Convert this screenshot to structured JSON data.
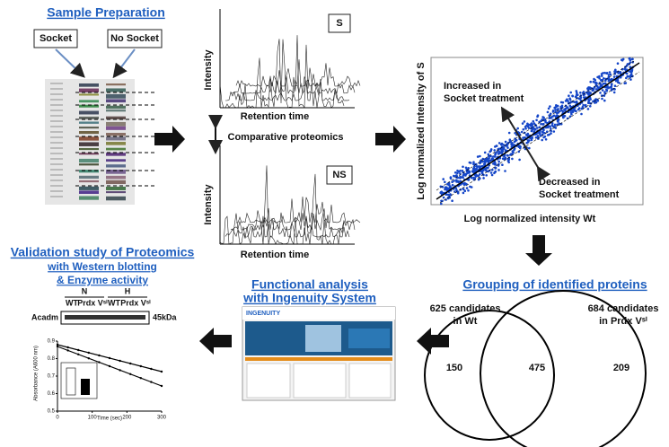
{
  "sample_preparation": {
    "title": "Sample Preparation",
    "socket": "Socket",
    "no_socket": "No Socket"
  },
  "chromatograms": {
    "top": {
      "label": "S",
      "y_label": "Intensity",
      "x_label": "Retention time"
    },
    "middle": "Comparative proteomics",
    "bottom": {
      "label": "NS",
      "y_label": "Intensity",
      "x_label": "Retention time"
    }
  },
  "scatter": {
    "y_label": "Log normalized Intensity of S",
    "x_label": "Log normalized intensity Wt",
    "increased": [
      "Increased in",
      "Socket treatment"
    ],
    "decreased": [
      "Decreased in",
      "Socket treatment"
    ]
  },
  "grouping": {
    "title": "Grouping of identified proteins",
    "left_label": [
      "625 candidates",
      "in Wt"
    ],
    "right_label": [
      "684 candidates",
      "in Prdx Vˢⁱ"
    ],
    "left_only": 150,
    "both": 475,
    "right_only": 209
  },
  "functional": {
    "title": [
      "Functional analysis",
      "with Ingenuity System"
    ],
    "screenshot_logo": "INGENUITY"
  },
  "validation": {
    "title": [
      "Validation study of Proteomics",
      "with Western blotting",
      "& Enzyme activity"
    ],
    "groups": [
      "N",
      "H"
    ],
    "lanes": [
      "WT",
      "Prdx Vˢⁱ",
      "WT",
      "Prdx Vˢⁱ"
    ],
    "protein": "Acadm",
    "size": "45kDa",
    "y_label": "Absorbance (A600 nm)",
    "x_label": "Time (sec)",
    "yticks": [
      0.9,
      0.8,
      0.7,
      0.6,
      0.5
    ],
    "xticks": [
      0,
      100,
      200,
      300
    ]
  }
}
